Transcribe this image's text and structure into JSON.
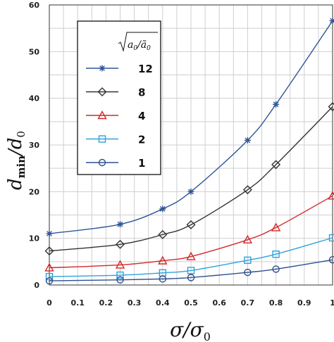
{
  "chart_data": {
    "type": "line",
    "xlabel": "σ/σ0",
    "ylabel": "dmin/d0",
    "xlim": [
      0,
      1
    ],
    "ylim": [
      0,
      60
    ],
    "xticks": [
      "0",
      "0.1",
      "0.2",
      "0.3",
      "0.4",
      "0.5",
      "0.6",
      "0.7",
      "0.8",
      "0.9",
      "1"
    ],
    "yticks": [
      "0",
      "10",
      "20",
      "30",
      "40",
      "50",
      "60"
    ],
    "grid": true,
    "legend_title": "√(a0/ã0)",
    "legend_position": "top-left",
    "x": [
      0,
      0.25,
      0.4,
      0.5,
      0.7,
      0.8,
      1.0
    ],
    "series": [
      {
        "name": "12",
        "color": "#2f5597",
        "marker": "star",
        "values": [
          11.0,
          13.0,
          16.3,
          20.0,
          31.0,
          38.7,
          56.6
        ]
      },
      {
        "name": "8",
        "color": "#333333",
        "marker": "diamond",
        "values": [
          7.3,
          8.7,
          10.8,
          12.9,
          20.4,
          25.8,
          38.2
        ]
      },
      {
        "name": "4",
        "color": "#d62728",
        "marker": "triangle",
        "values": [
          3.7,
          4.3,
          5.2,
          6.1,
          9.7,
          12.3,
          19.1
        ]
      },
      {
        "name": "2",
        "color": "#2ea3dd",
        "marker": "square",
        "values": [
          1.8,
          2.1,
          2.6,
          3.1,
          5.3,
          6.6,
          10.1
        ]
      },
      {
        "name": "1",
        "color": "#2f4f8f",
        "marker": "circle",
        "values": [
          0.9,
          1.1,
          1.3,
          1.6,
          2.7,
          3.4,
          5.4
        ]
      }
    ]
  }
}
